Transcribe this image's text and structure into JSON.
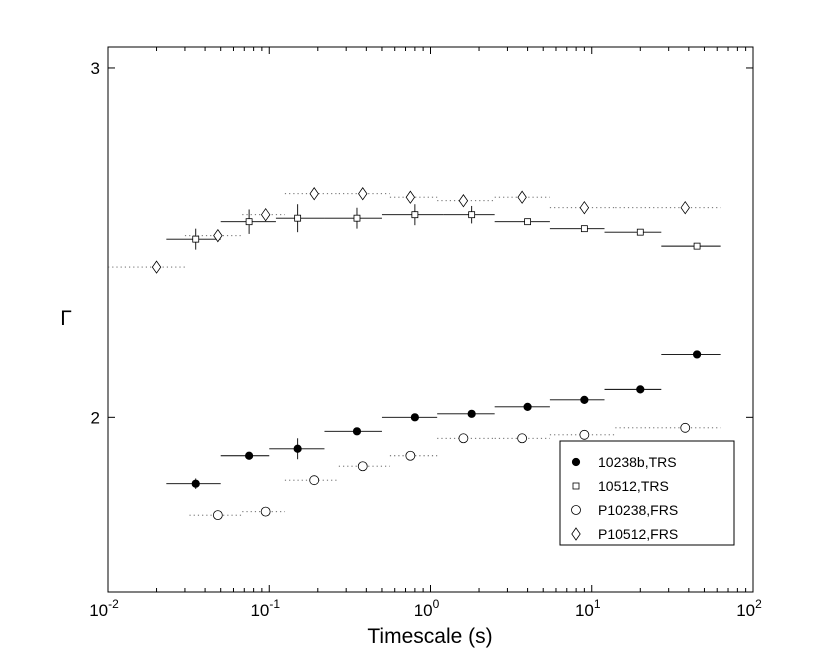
{
  "chart_data": {
    "type": "scatter",
    "title": "",
    "xlabel": "Timescale (s)",
    "ylabel": "Γ",
    "xscale": "log",
    "xlim": [
      0.01,
      100
    ],
    "ylim": [
      1.5,
      3.06
    ],
    "grid": false,
    "legend_position": "bottom-right",
    "x_ticks": [
      {
        "value": 0.01,
        "base": "10",
        "exp": "-2"
      },
      {
        "value": 0.1,
        "base": "10",
        "exp": "-1"
      },
      {
        "value": 1,
        "base": "10",
        "exp": "0"
      },
      {
        "value": 10,
        "base": "10",
        "exp": "1"
      },
      {
        "value": 100,
        "base": "10",
        "exp": "2"
      }
    ],
    "y_ticks": [
      {
        "value": 2,
        "label": "2"
      },
      {
        "value": 3,
        "label": "3"
      }
    ],
    "series": [
      {
        "name": "10238b,TRS",
        "marker": "filled-circle",
        "line": "solid",
        "points": [
          {
            "x": 0.035,
            "y": 1.81,
            "xlo": 0.023,
            "xhi": 0.05,
            "yerr": 0.015
          },
          {
            "x": 0.075,
            "y": 1.89,
            "xlo": 0.05,
            "xhi": 0.1,
            "yerr": 0.01
          },
          {
            "x": 0.15,
            "y": 1.91,
            "xlo": 0.1,
            "xhi": 0.22,
            "yerr": 0.03
          },
          {
            "x": 0.35,
            "y": 1.96,
            "xlo": 0.22,
            "xhi": 0.5
          },
          {
            "x": 0.8,
            "y": 2.0,
            "xlo": 0.5,
            "xhi": 1.1
          },
          {
            "x": 1.8,
            "y": 2.01,
            "xlo": 1.1,
            "xhi": 2.5
          },
          {
            "x": 4.0,
            "y": 2.03,
            "xlo": 2.5,
            "xhi": 5.5
          },
          {
            "x": 9.0,
            "y": 2.05,
            "xlo": 5.5,
            "xhi": 12.0
          },
          {
            "x": 20.0,
            "y": 2.08,
            "xlo": 12.0,
            "xhi": 27.0
          },
          {
            "x": 45.0,
            "y": 2.18,
            "xlo": 27.0,
            "xhi": 63.0
          }
        ]
      },
      {
        "name": "10512,TRS",
        "marker": "square",
        "line": "solid",
        "points": [
          {
            "x": 0.035,
            "y": 2.51,
            "xlo": 0.023,
            "xhi": 0.05,
            "yerr": 0.03
          },
          {
            "x": 0.075,
            "y": 2.56,
            "xlo": 0.05,
            "xhi": 0.11,
            "yerr": 0.035
          },
          {
            "x": 0.15,
            "y": 2.57,
            "xlo": 0.11,
            "xhi": 0.22,
            "yerr": 0.04
          },
          {
            "x": 0.35,
            "y": 2.57,
            "xlo": 0.22,
            "xhi": 0.5,
            "yerr": 0.03
          },
          {
            "x": 0.8,
            "y": 2.58,
            "xlo": 0.5,
            "xhi": 1.2,
            "yerr": 0.03
          },
          {
            "x": 1.8,
            "y": 2.58,
            "xlo": 1.2,
            "xhi": 2.5,
            "yerr": 0.025
          },
          {
            "x": 4.0,
            "y": 2.56,
            "xlo": 2.5,
            "xhi": 5.5
          },
          {
            "x": 9.0,
            "y": 2.54,
            "xlo": 5.5,
            "xhi": 12.0
          },
          {
            "x": 20.0,
            "y": 2.53,
            "xlo": 12.0,
            "xhi": 27.0
          },
          {
            "x": 45.0,
            "y": 2.49,
            "xlo": 27.0,
            "xhi": 63.0
          }
        ]
      },
      {
        "name": "P10238,FRS",
        "marker": "open-circle",
        "line": "dotted",
        "points": [
          {
            "x": 0.048,
            "y": 1.72,
            "xlo": 0.032,
            "xhi": 0.068
          },
          {
            "x": 0.095,
            "y": 1.73,
            "xlo": 0.068,
            "xhi": 0.125
          },
          {
            "x": 0.19,
            "y": 1.82,
            "xlo": 0.125,
            "xhi": 0.27
          },
          {
            "x": 0.38,
            "y": 1.86,
            "xlo": 0.27,
            "xhi": 0.56
          },
          {
            "x": 0.75,
            "y": 1.89,
            "xlo": 0.56,
            "xhi": 1.1
          },
          {
            "x": 1.6,
            "y": 1.94,
            "xlo": 1.1,
            "xhi": 2.5
          },
          {
            "x": 3.7,
            "y": 1.94,
            "xlo": 2.5,
            "xhi": 5.5
          },
          {
            "x": 9.0,
            "y": 1.95,
            "xlo": 5.5,
            "xhi": 14.0
          },
          {
            "x": 38.0,
            "y": 1.97,
            "xlo": 14.0,
            "xhi": 63.0
          }
        ]
      },
      {
        "name": "P10512,FRS",
        "marker": "diamond",
        "line": "dotted",
        "points": [
          {
            "x": 0.02,
            "y": 2.43,
            "xlo": 0.01,
            "xhi": 0.03
          },
          {
            "x": 0.048,
            "y": 2.52,
            "xlo": 0.03,
            "xhi": 0.068
          },
          {
            "x": 0.095,
            "y": 2.58,
            "xlo": 0.068,
            "xhi": 0.125
          },
          {
            "x": 0.19,
            "y": 2.64,
            "xlo": 0.125,
            "xhi": 0.27
          },
          {
            "x": 0.38,
            "y": 2.64,
            "xlo": 0.27,
            "xhi": 0.56
          },
          {
            "x": 0.75,
            "y": 2.63,
            "xlo": 0.56,
            "xhi": 1.1
          },
          {
            "x": 1.6,
            "y": 2.62,
            "xlo": 1.1,
            "xhi": 2.5
          },
          {
            "x": 3.7,
            "y": 2.63,
            "xlo": 2.5,
            "xhi": 5.5
          },
          {
            "x": 9.0,
            "y": 2.6,
            "xlo": 5.5,
            "xhi": 14.0
          },
          {
            "x": 38.0,
            "y": 2.6,
            "xlo": 14.0,
            "xhi": 63.0
          }
        ]
      }
    ]
  }
}
